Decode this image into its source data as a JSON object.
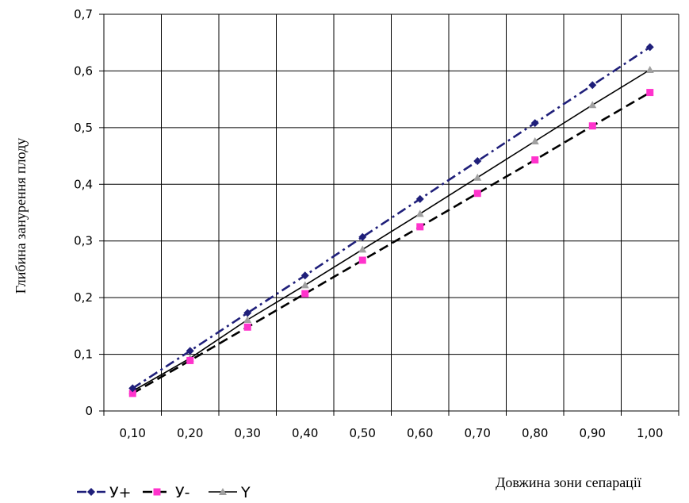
{
  "chart_data": {
    "type": "line",
    "ylabel": "Глибина занурення плоду",
    "xlabel": "Довжина зони сепарації",
    "categories": [
      "0,10",
      "0,20",
      "0,30",
      "0,40",
      "0,50",
      "0,60",
      "0,70",
      "0,80",
      "0,90",
      "1,00"
    ],
    "x": [
      0.1,
      0.2,
      0.3,
      0.4,
      0.5,
      0.6,
      0.7,
      0.8,
      0.9,
      1.0
    ],
    "ylim": [
      0,
      0.7
    ],
    "yticks": [
      0,
      0.1,
      0.2,
      0.3,
      0.4,
      0.5,
      0.6,
      0.7
    ],
    "ytick_labels": [
      "0",
      "0,1",
      "0,2",
      "0,3",
      "0,4",
      "0,5",
      "0,6",
      "0,7"
    ],
    "grid": true,
    "legend_position": "bottom-left",
    "series": [
      {
        "name": "У+",
        "values": [
          0.04,
          0.106,
          0.173,
          0.239,
          0.307,
          0.374,
          0.441,
          0.508,
          0.575,
          0.642
        ],
        "color": "#1f1f7a",
        "dash": "dash-dot",
        "marker": "diamond"
      },
      {
        "name": "У-",
        "values": [
          0.031,
          0.089,
          0.148,
          0.207,
          0.266,
          0.325,
          0.384,
          0.443,
          0.503,
          0.562
        ],
        "color": "#000000",
        "marker_color": "#ff33cc",
        "dash": "dashed",
        "marker": "square"
      },
      {
        "name": "Y",
        "values": [
          0.035,
          0.093,
          0.161,
          0.222,
          0.285,
          0.348,
          0.412,
          0.476,
          0.54,
          0.602
        ],
        "color": "#000000",
        "marker_color": "#a0a0a0",
        "dash": "solid",
        "marker": "triangle"
      }
    ]
  }
}
